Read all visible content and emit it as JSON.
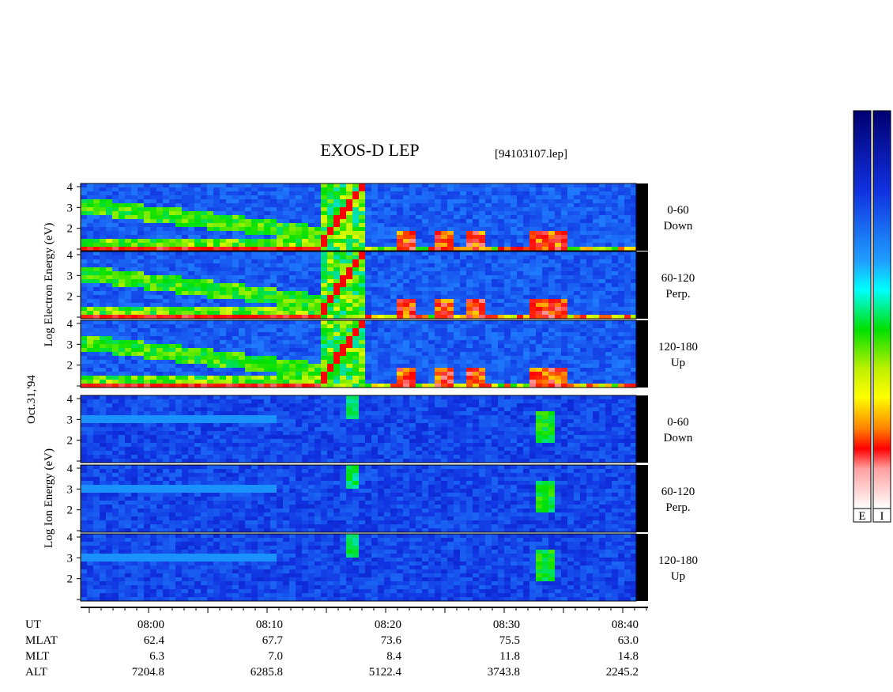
{
  "header": {
    "title": "EXOS-D LEP",
    "file": "[94103107.lep]"
  },
  "electron_axis_label": "Log Electron Energy (eV)",
  "ion_axis_label": "Log Ion Energy (eV)",
  "date": "Oct.31,'94",
  "energy_ticks": [
    2,
    3,
    4
  ],
  "panels": [
    {
      "species": "electron",
      "angle": "0-60",
      "direction": "Down"
    },
    {
      "species": "electron",
      "angle": "60-120",
      "direction": "Perp."
    },
    {
      "species": "electron",
      "angle": "120-180",
      "direction": "Up"
    },
    {
      "species": "ion",
      "angle": "0-60",
      "direction": "Down"
    },
    {
      "species": "ion",
      "angle": "60-120",
      "direction": "Perp."
    },
    {
      "species": "ion",
      "angle": "120-180",
      "direction": "Up"
    }
  ],
  "ephemeris": {
    "rows": [
      {
        "label": "UT",
        "values": [
          "08:00",
          "08:10",
          "08:20",
          "08:30",
          "08:40"
        ]
      },
      {
        "label": "MLAT",
        "values": [
          "62.4",
          "67.7",
          "73.6",
          "75.5",
          "63.0"
        ]
      },
      {
        "label": "MLT",
        "values": [
          "6.3",
          "7.0",
          "8.4",
          "11.8",
          "14.8"
        ]
      },
      {
        "label": "ALT",
        "values": [
          "7204.8",
          "6285.8",
          "5122.4",
          "3743.8",
          "2245.2"
        ]
      }
    ]
  },
  "colorbars": [
    "E",
    "I"
  ]
}
